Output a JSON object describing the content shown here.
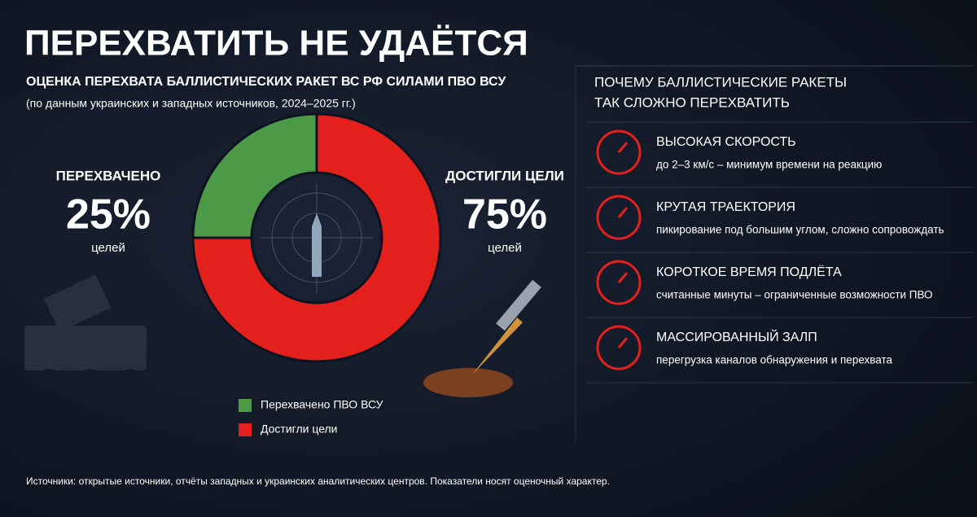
{
  "header": {
    "title": "ПЕРЕХВАТИТЬ НЕ УДАЁТСЯ"
  },
  "chart_data": {
    "type": "pie",
    "donut": true,
    "title": "ОЦЕНКА ПЕРЕХВАТА БАЛЛИСТИЧЕСКИХ РАКЕТ ВС РФ СИЛАМИ ПВО ВСУ",
    "subtitle": "(по данным украинских и западных источников, 2024–2025 гг.)",
    "categories": [
      "Перехвачено ПВО ВСУ",
      "Достигли цели"
    ],
    "values": [
      25,
      75
    ],
    "value_labels": [
      "25%",
      "75%"
    ],
    "colors": [
      "#4c9a48",
      "#e3201c"
    ],
    "annotations": [
      {
        "label": "ПЕРЕХВАЧЕНО",
        "unit": "целей"
      },
      {
        "label": "ДОСТИГЛИ ЦЕЛИ",
        "unit": "целей"
      }
    ],
    "legend": "bottom"
  },
  "sidebar": {
    "title_lines": [
      "ПОЧЕМУ БАЛЛИСТИЧЕСКИЕ РАКЕТЫ",
      "ТАК СЛОЖНО ПЕРЕХВАТИТЬ"
    ],
    "items": [
      {
        "title": "ВЫСОКАЯ СКОРОСТЬ",
        "text": "до 2–3 км/с – минимум времени на реакцию"
      },
      {
        "title": "КРУТАЯ ТРАЕКТОРИЯ",
        "text": "пикирование под большим углом, сложно сопровождать"
      },
      {
        "title": "КОРОТКОЕ ВРЕМЯ ПОДЛЁТА",
        "text": "считанные минуты – ограниченные возможности ПВО"
      },
      {
        "title": "МАССИРОВАННЫЙ ЗАЛП",
        "text": "перегрузка каналов обнаружения и перехвата"
      }
    ]
  },
  "footer": {
    "source": "Источники: открытые источники, отчёты западных и украинских аналитических центров. Показатели носят оценочный характер."
  }
}
